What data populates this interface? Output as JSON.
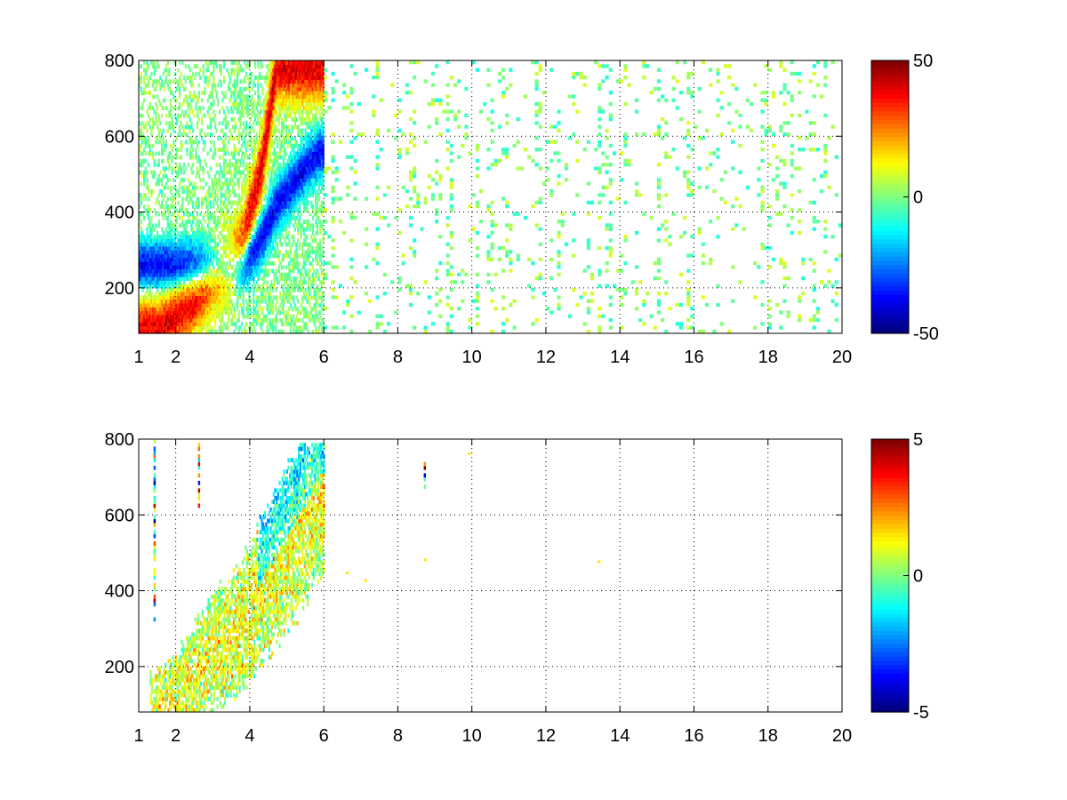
{
  "chart_data": [
    {
      "type": "heatmap",
      "title": "",
      "xlabel": "",
      "ylabel": "",
      "xlim": [
        1,
        20
      ],
      "ylim": [
        80,
        800
      ],
      "xticks": [
        1,
        2,
        4,
        6,
        8,
        10,
        12,
        14,
        16,
        18,
        20
      ],
      "xtick_labels": [
        "1",
        "2",
        "4",
        "6",
        "8",
        "10",
        "12",
        "14",
        "16",
        "18",
        "20"
      ],
      "yticks": [
        200,
        400,
        600,
        800
      ],
      "ytick_labels": [
        "200",
        "400",
        "600",
        "800"
      ],
      "grid": true,
      "colormap": "jet",
      "colorbar": {
        "range": [
          -50,
          50
        ],
        "ticks": [
          50,
          0,
          -50
        ],
        "tick_labels": [
          "50",
          "0",
          "-50"
        ]
      },
      "features": {
        "dense_region_x": [
          1.0,
          6.0
        ],
        "positive_ridge": [
          [
            1.5,
            90
          ],
          [
            2.5,
            170
          ],
          [
            3.0,
            230
          ],
          [
            3.5,
            270
          ],
          [
            3.8,
            320
          ],
          [
            4.0,
            400
          ],
          [
            4.3,
            520
          ],
          [
            4.5,
            650
          ],
          [
            4.7,
            780
          ]
        ],
        "negative_ridge": [
          [
            3.8,
            260
          ],
          [
            4.1,
            300
          ],
          [
            4.4,
            350
          ],
          [
            4.7,
            420
          ],
          [
            5.1,
            470
          ],
          [
            5.5,
            520
          ],
          [
            5.9,
            560
          ]
        ],
        "ridge_peak_value": 40,
        "sparse_region_x": [
          6.0,
          20.0
        ],
        "sparse_value_range": [
          -10,
          10
        ]
      }
    },
    {
      "type": "heatmap",
      "title": "",
      "xlabel": "",
      "ylabel": "",
      "xlim": [
        1,
        20
      ],
      "ylim": [
        80,
        800
      ],
      "xticks": [
        1,
        2,
        4,
        6,
        8,
        10,
        12,
        14,
        16,
        18,
        20
      ],
      "xtick_labels": [
        "1",
        "2",
        "4",
        "6",
        "8",
        "10",
        "12",
        "14",
        "16",
        "18",
        "20"
      ],
      "yticks": [
        200,
        400,
        600,
        800
      ],
      "ytick_labels": [
        "200",
        "400",
        "600",
        "800"
      ],
      "grid": true,
      "colormap": "jet",
      "colorbar": {
        "range": [
          -5,
          5
        ],
        "ticks": [
          5,
          0,
          -5
        ],
        "tick_labels": [
          "5",
          "0",
          "-5"
        ]
      },
      "features": {
        "band_center": [
          [
            1.5,
            90
          ],
          [
            2.0,
            110
          ],
          [
            2.5,
            180
          ],
          [
            3.0,
            240
          ],
          [
            3.5,
            280
          ],
          [
            4.0,
            340
          ],
          [
            4.5,
            430
          ],
          [
            5.0,
            520
          ],
          [
            5.5,
            600
          ],
          [
            5.9,
            680
          ]
        ],
        "band_upper_limit": 790,
        "isolated_streaks": [
          [
            1.4,
            300,
            800
          ],
          [
            2.6,
            620,
            790
          ],
          [
            8.7,
            660,
            740
          ]
        ],
        "isolated_points": [
          [
            6.6,
            450
          ],
          [
            7.1,
            430
          ],
          [
            8.7,
            485
          ],
          [
            9.9,
            765
          ],
          [
            13.4,
            480
          ]
        ]
      }
    }
  ]
}
